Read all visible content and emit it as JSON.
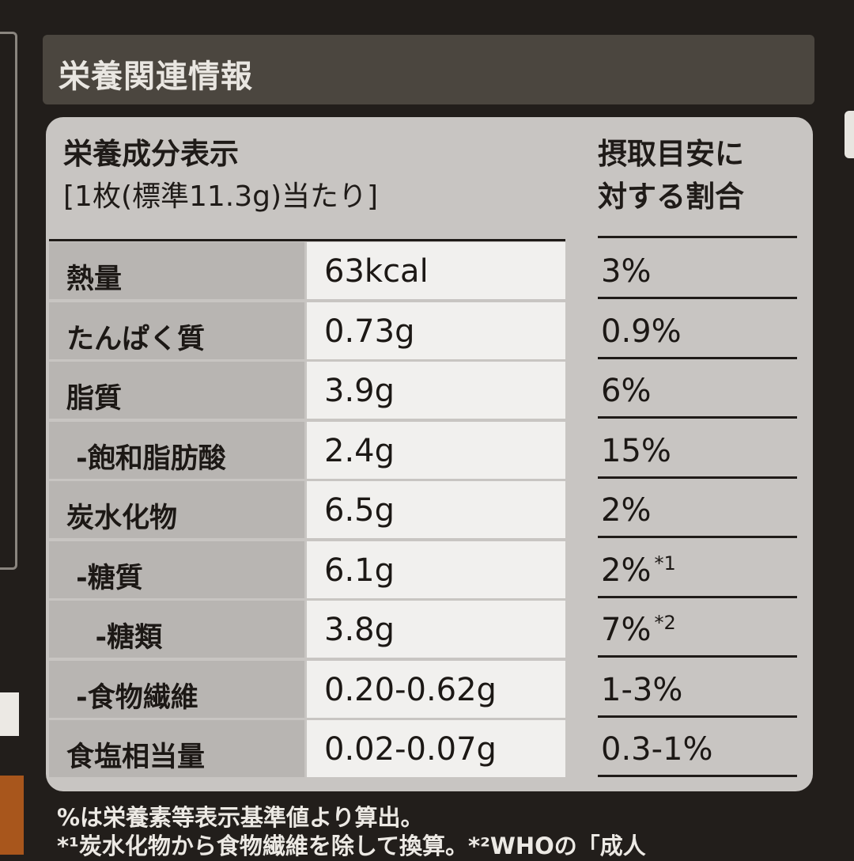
{
  "header": {
    "title": "栄養関連情報"
  },
  "table": {
    "title_line1": "栄養成分表示",
    "title_line2": "[1枚(標準11.3g)当たり]",
    "pct_header_line1": "摂取目安に",
    "pct_header_line2": "対する割合",
    "rows": [
      {
        "label": "熱量",
        "value": "63kcal",
        "pct": "3%",
        "note": ""
      },
      {
        "label": "たんぱく質",
        "value": "0.73g",
        "pct": "0.9%",
        "note": ""
      },
      {
        "label": "脂質",
        "value": "3.9g",
        "pct": "6%",
        "note": ""
      },
      {
        "label": " -飽和脂肪酸",
        "value": "2.4g",
        "pct": "15%",
        "note": ""
      },
      {
        "label": "炭水化物",
        "value": "6.5g",
        "pct": "2%",
        "note": ""
      },
      {
        "label": " -糖質",
        "value": "6.1g",
        "pct": "2%",
        "note": "*1"
      },
      {
        "label": "   -糖類",
        "value": "3.8g",
        "pct": "7%",
        "note": "*2"
      },
      {
        "label": " -食物繊維",
        "value": "0.20-0.62g",
        "pct": "1-3%",
        "note": ""
      },
      {
        "label": "食塩相当量",
        "value": "0.02-0.07g",
        "pct": "0.3-1%",
        "note": ""
      }
    ]
  },
  "footnotes": {
    "line1": "%は栄養素等表示基準値より算出。",
    "line2": "*¹炭水化物から食物繊維を除して換算。*²WHOの「成人"
  }
}
